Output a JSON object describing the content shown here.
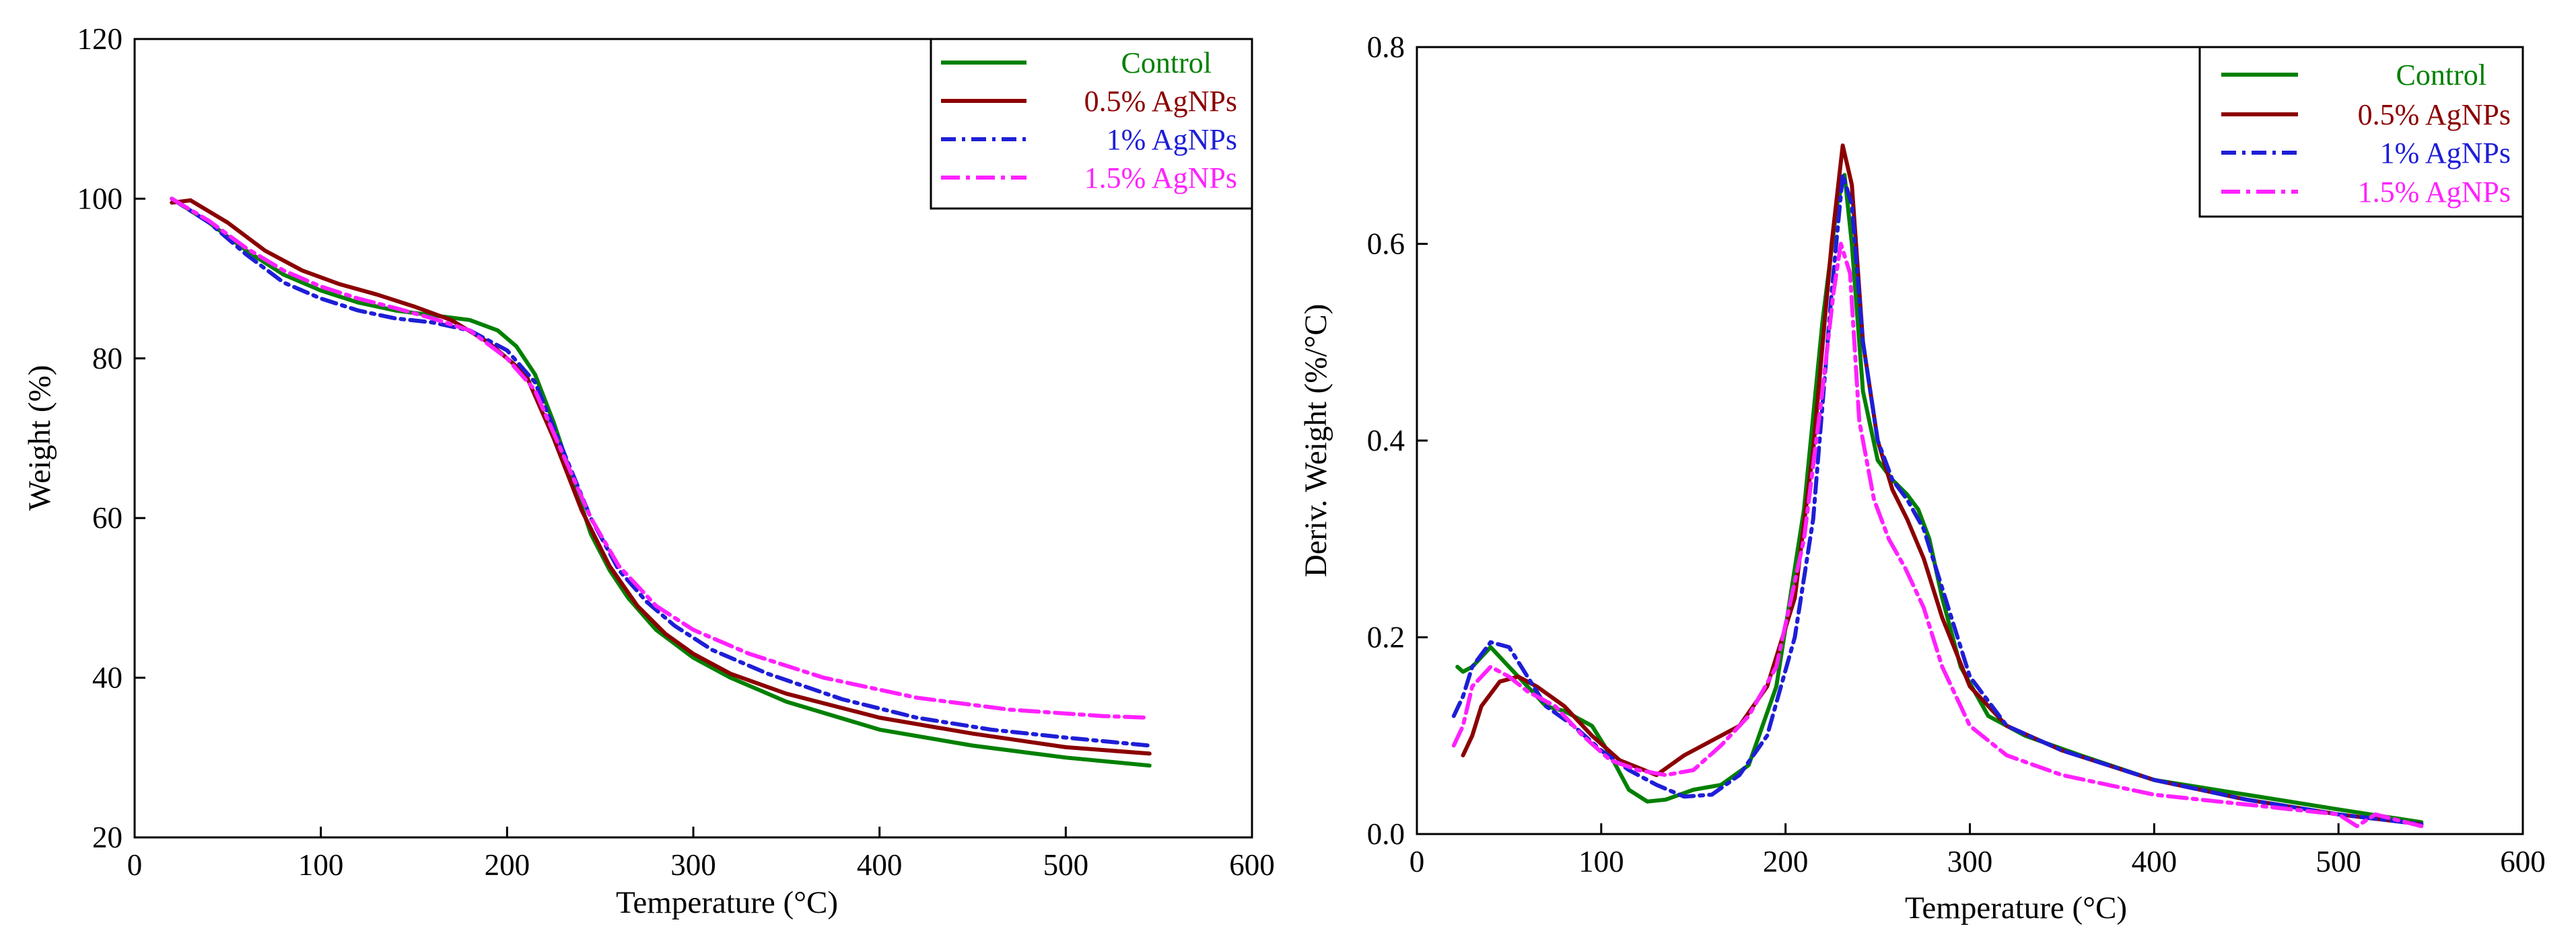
{
  "chart_data": [
    {
      "type": "line",
      "title": "",
      "xlabel": "Temperature (°C)",
      "ylabel": "Weight (%)",
      "xlim": [
        0,
        600
      ],
      "ylim": [
        20,
        120
      ],
      "xticks": [
        0,
        100,
        200,
        300,
        400,
        500,
        600
      ],
      "yticks": [
        20,
        40,
        60,
        80,
        100,
        120
      ],
      "legend_position": "top-right",
      "series": [
        {
          "name": "Control",
          "color": "#008000",
          "dash": "solid",
          "x": [
            20,
            40,
            60,
            80,
            100,
            120,
            140,
            160,
            180,
            195,
            205,
            215,
            225,
            235,
            245,
            255,
            265,
            280,
            300,
            320,
            350,
            400,
            450,
            500,
            545
          ],
          "y": [
            100,
            97,
            93.5,
            90.5,
            88.5,
            87,
            86,
            85.4,
            84.8,
            83.5,
            81.5,
            78,
            72,
            65,
            58,
            53.5,
            50,
            46,
            42.5,
            40,
            37,
            33.5,
            31.5,
            30,
            29
          ]
        },
        {
          "name": "0.5% AgNPs",
          "color": "#8b0000",
          "dash": "solid",
          "x": [
            20,
            30,
            50,
            70,
            90,
            110,
            130,
            150,
            170,
            190,
            210,
            225,
            240,
            255,
            270,
            285,
            300,
            320,
            350,
            400,
            450,
            500,
            545
          ],
          "y": [
            99.5,
            99.8,
            97,
            93.5,
            91,
            89.3,
            88,
            86.5,
            84.8,
            82,
            78,
            70,
            61,
            54,
            49,
            45.5,
            43,
            40.5,
            38,
            35,
            33,
            31.3,
            30.5
          ]
        },
        {
          "name": "1% AgNPs",
          "color": "#1e1ed7",
          "dash": "22 9 5 9",
          "x": [
            20,
            40,
            60,
            80,
            100,
            120,
            140,
            160,
            180,
            200,
            215,
            230,
            245,
            260,
            275,
            290,
            310,
            340,
            380,
            420,
            460,
            500,
            545
          ],
          "y": [
            100,
            97,
            93,
            89.5,
            87.5,
            86,
            85,
            84.5,
            83.5,
            81,
            77,
            68.5,
            60,
            53.5,
            49.5,
            46.5,
            43.5,
            40.5,
            37.3,
            35,
            33.5,
            32.5,
            31.5
          ]
        },
        {
          "name": "1.5% AgNPs",
          "color": "#ff21ff",
          "dash": "28 9 6 9",
          "x": [
            20,
            40,
            60,
            80,
            100,
            120,
            140,
            160,
            180,
            200,
            215,
            230,
            245,
            260,
            280,
            300,
            330,
            370,
            420,
            470,
            520,
            545
          ],
          "y": [
            100,
            97.2,
            93.8,
            91,
            89,
            87.5,
            86.3,
            85,
            83.5,
            80,
            76,
            68,
            60,
            54,
            49,
            46,
            43,
            40,
            37.5,
            36,
            35.2,
            35
          ]
        }
      ]
    },
    {
      "type": "line",
      "title": "",
      "xlabel": "Temperature (°C)",
      "ylabel": "Deriv. Weight (%/°C)",
      "xlim": [
        0,
        600
      ],
      "ylim": [
        0,
        0.8
      ],
      "xticks": [
        0,
        100,
        200,
        300,
        400,
        500,
        600
      ],
      "yticks": [
        0.0,
        0.2,
        0.4,
        0.6,
        0.8
      ],
      "ytick_labels": [
        "0.0",
        "0.2",
        "0.4",
        "0.6",
        "0.8"
      ],
      "legend_position": "top-right",
      "series": [
        {
          "name": "Control",
          "color": "#008000",
          "dash": "solid",
          "x": [
            22,
            25,
            30,
            40,
            50,
            60,
            70,
            80,
            95,
            105,
            115,
            125,
            135,
            150,
            165,
            180,
            195,
            210,
            220,
            228,
            232,
            236,
            242,
            250,
            258,
            266,
            272,
            278,
            285,
            295,
            310,
            330,
            360,
            400,
            450,
            500,
            545
          ],
          "y": [
            0.17,
            0.165,
            0.17,
            0.19,
            0.17,
            0.15,
            0.13,
            0.125,
            0.11,
            0.08,
            0.045,
            0.033,
            0.035,
            0.045,
            0.05,
            0.07,
            0.15,
            0.33,
            0.52,
            0.64,
            0.67,
            0.6,
            0.45,
            0.38,
            0.36,
            0.345,
            0.33,
            0.3,
            0.24,
            0.17,
            0.12,
            0.1,
            0.08,
            0.055,
            0.04,
            0.025,
            0.012
          ]
        },
        {
          "name": "0.5% AgNPs",
          "color": "#8b0000",
          "dash": "solid",
          "x": [
            25,
            30,
            35,
            45,
            55,
            65,
            80,
            95,
            110,
            130,
            145,
            160,
            175,
            190,
            205,
            215,
            225,
            231,
            236,
            242,
            250,
            258,
            266,
            275,
            285,
            300,
            320,
            350,
            400,
            450,
            500,
            545
          ],
          "y": [
            0.08,
            0.1,
            0.13,
            0.155,
            0.16,
            0.15,
            0.13,
            0.1,
            0.075,
            0.06,
            0.08,
            0.095,
            0.11,
            0.15,
            0.24,
            0.39,
            0.6,
            0.7,
            0.66,
            0.5,
            0.4,
            0.35,
            0.32,
            0.28,
            0.22,
            0.15,
            0.11,
            0.085,
            0.055,
            0.035,
            0.02,
            0.01
          ]
        },
        {
          "name": "1% AgNPs",
          "color": "#1e1ed7",
          "dash": "22 9 5 9",
          "x": [
            20,
            25,
            30,
            40,
            50,
            60,
            70,
            85,
            100,
            115,
            130,
            145,
            160,
            175,
            190,
            205,
            215,
            225,
            231,
            236,
            242,
            250,
            258,
            266,
            275,
            285,
            300,
            320,
            350,
            400,
            450,
            500,
            545
          ],
          "y": [
            0.12,
            0.14,
            0.17,
            0.195,
            0.19,
            0.16,
            0.13,
            0.11,
            0.085,
            0.065,
            0.05,
            0.038,
            0.04,
            0.06,
            0.1,
            0.2,
            0.32,
            0.55,
            0.67,
            0.64,
            0.5,
            0.4,
            0.36,
            0.34,
            0.31,
            0.25,
            0.16,
            0.11,
            0.085,
            0.055,
            0.035,
            0.02,
            0.01
          ]
        },
        {
          "name": "1.5% AgNPs",
          "color": "#ff21ff",
          "dash": "28 9 6 9",
          "x": [
            20,
            25,
            30,
            40,
            50,
            60,
            75,
            90,
            105,
            120,
            135,
            150,
            165,
            180,
            195,
            210,
            220,
            226,
            230,
            235,
            240,
            248,
            256,
            265,
            275,
            285,
            300,
            320,
            350,
            400,
            450,
            500,
            510,
            520,
            545
          ],
          "y": [
            0.09,
            0.11,
            0.15,
            0.17,
            0.16,
            0.145,
            0.13,
            0.1,
            0.075,
            0.065,
            0.06,
            0.065,
            0.09,
            0.12,
            0.17,
            0.3,
            0.45,
            0.55,
            0.6,
            0.57,
            0.42,
            0.34,
            0.3,
            0.27,
            0.23,
            0.17,
            0.11,
            0.08,
            0.06,
            0.04,
            0.03,
            0.02,
            0.008,
            0.02,
            0.008
          ]
        }
      ]
    }
  ]
}
